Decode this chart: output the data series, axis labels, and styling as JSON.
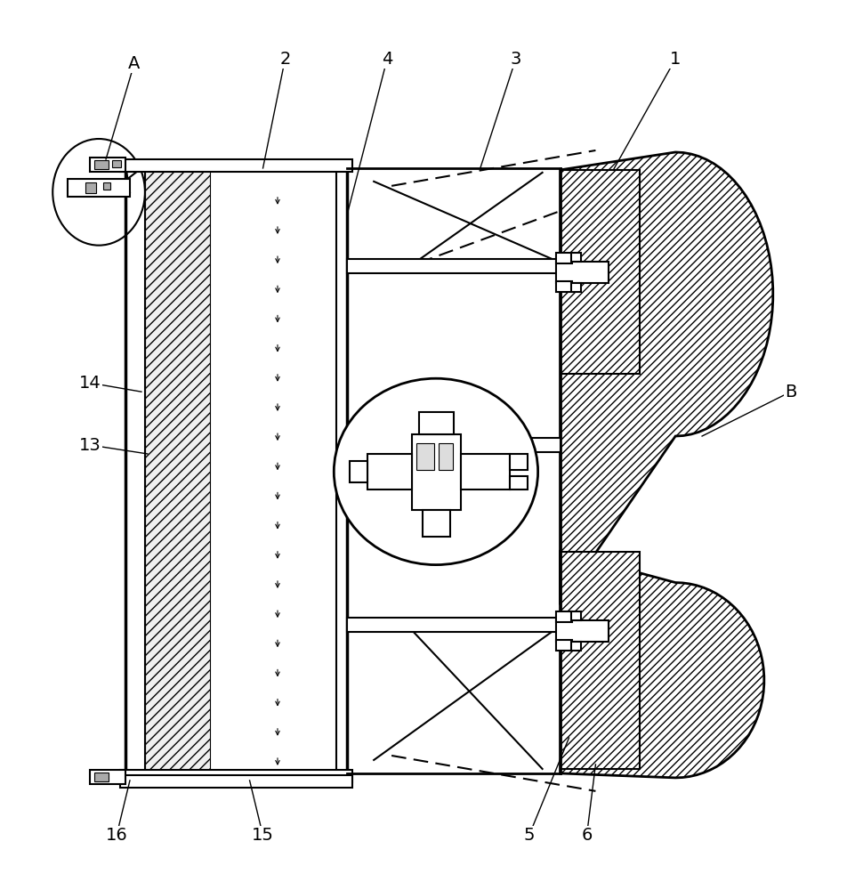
{
  "bg_color": "#ffffff",
  "line_color": "#000000",
  "fig_width": 9.53,
  "fig_height": 10.0
}
